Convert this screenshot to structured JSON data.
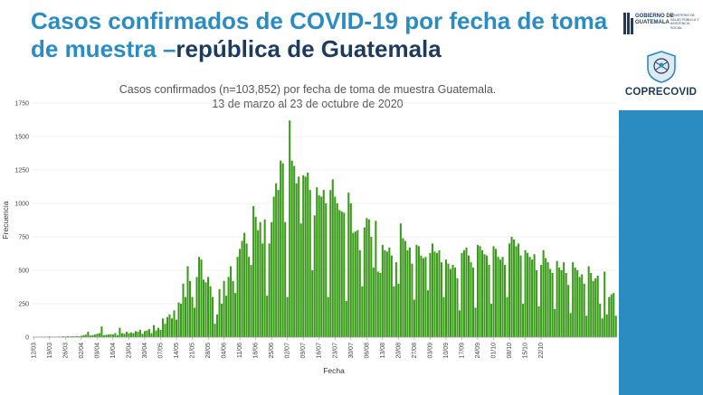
{
  "slide": {
    "title_part1": "Casos confirmados de COVID-19 por fecha de toma de muestra –",
    "title_part2": "república de Guatemala"
  },
  "sidebar": {
    "gov_logo_text": "GOBIERNO DE GUATEMALA",
    "gov_logo_subtext": "MINISTERIO DE SALUD PÚBLICA Y ASISTENCIA SOCIAL",
    "brand": "COPRECOVID",
    "colors": {
      "blue": "#2a8cc0",
      "navy": "#1d3b5c"
    }
  },
  "chart_data": {
    "type": "bar",
    "title_line1": "Casos confirmados (n=103,852) por fecha de toma de muestra Guatemala.",
    "title_line2": "13 de marzo al 23 de octubre de 2020",
    "xlabel": "Fecha",
    "ylabel": "Frecuencia",
    "ylim": [
      0,
      1750
    ],
    "yticks": [
      0,
      250,
      500,
      750,
      1000,
      1250,
      1500,
      1750
    ],
    "xtick_labels": [
      "12/03",
      "19/03",
      "26/03",
      "02/04",
      "09/04",
      "16/04",
      "23/04",
      "30/04",
      "07/05",
      "14/05",
      "21/05",
      "28/05",
      "04/06",
      "11/06",
      "18/06",
      "25/06",
      "02/07",
      "09/07",
      "16/07",
      "23/07",
      "30/07",
      "06/08",
      "13/08",
      "20/08",
      "27/08",
      "03/09",
      "10/09",
      "17/09",
      "24/09",
      "01/10",
      "08/10",
      "15/10",
      "22/10"
    ],
    "bar_color": "#3a9a1a",
    "values": [
      1,
      0,
      2,
      1,
      3,
      2,
      3,
      5,
      2,
      3,
      2,
      4,
      3,
      6,
      4,
      8,
      5,
      7,
      5,
      8,
      6,
      10,
      15,
      18,
      40,
      12,
      15,
      20,
      25,
      30,
      80,
      15,
      18,
      20,
      22,
      20,
      30,
      15,
      70,
      30,
      25,
      40,
      30,
      35,
      30,
      45,
      40,
      55,
      25,
      45,
      50,
      60,
      30,
      90,
      50,
      70,
      55,
      140,
      100,
      150,
      170,
      140,
      200,
      130,
      260,
      250,
      400,
      300,
      530,
      420,
      300,
      220,
      450,
      600,
      580,
      430,
      410,
      450,
      380,
      300,
      100,
      170,
      360,
      250,
      420,
      310,
      450,
      530,
      420,
      330,
      600,
      660,
      720,
      780,
      700,
      600,
      540,
      980,
      900,
      800,
      860,
      700,
      880,
      310,
      700,
      860,
      1050,
      1150,
      1100,
      1320,
      1300,
      860,
      300,
      1620,
      1320,
      1280,
      1150,
      1200,
      850,
      1210,
      1200,
      1230,
      1100,
      500,
      910,
      1120,
      1060,
      1050,
      1100,
      1000,
      300,
      1100,
      1180,
      1050,
      1000,
      950,
      940,
      930,
      270,
      1080,
      1000,
      780,
      790,
      800,
      650,
      380,
      820,
      890,
      880,
      750,
      520,
      870,
      490,
      480,
      690,
      650,
      640,
      670,
      610,
      380,
      560,
      400,
      850,
      740,
      720,
      650,
      670,
      550,
      280,
      690,
      680,
      610,
      590,
      600,
      350,
      630,
      700,
      640,
      630,
      650,
      560,
      300,
      580,
      550,
      510,
      540,
      520,
      440,
      200,
      630,
      650,
      670,
      610,
      560,
      520,
      220,
      690,
      680,
      650,
      620,
      610,
      540,
      250,
      680,
      660,
      600,
      580,
      600,
      540,
      300,
      700,
      750,
      730,
      680,
      700,
      610,
      250,
      650,
      630,
      600,
      580,
      620,
      500,
      230,
      540,
      650,
      590,
      560,
      510,
      480,
      210,
      570,
      520,
      500,
      560,
      480,
      390,
      180,
      560,
      520,
      500,
      450,
      470,
      400,
      160,
      530,
      480,
      420,
      440,
      460,
      250,
      140,
      490,
      170,
      300,
      320,
      330,
      160
    ]
  }
}
